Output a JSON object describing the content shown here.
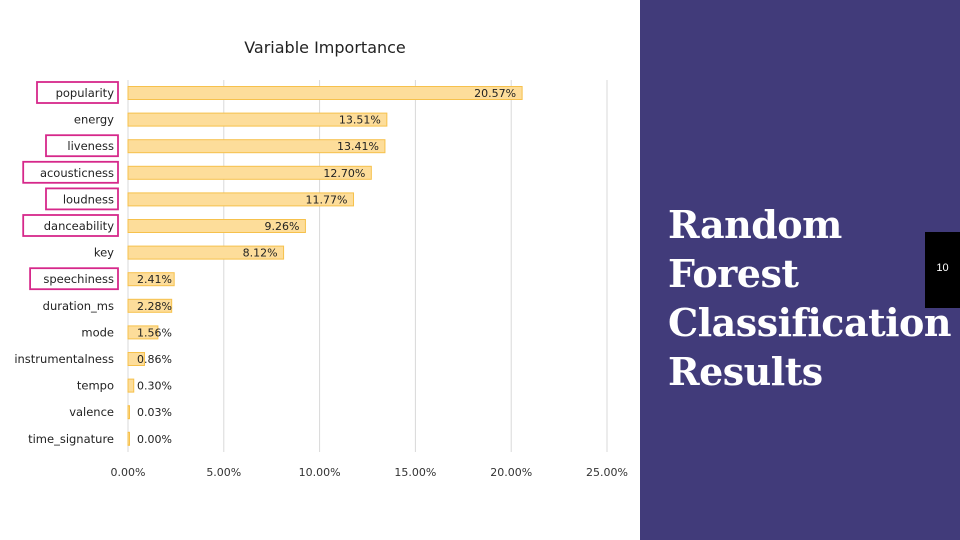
{
  "slide": {
    "title": "Random Forest Classification Results",
    "page_number": "10",
    "panel_color": "#413b7a"
  },
  "chart_data": {
    "type": "bar",
    "orientation": "horizontal",
    "title": "Variable Importance",
    "xlabel": "",
    "ylabel": "",
    "xlim": [
      0,
      25
    ],
    "x_ticks": [
      "0.00%",
      "5.00%",
      "10.00%",
      "15.00%",
      "20.00%",
      "25.00%"
    ],
    "grid": true,
    "bar_color": "#fddd9a",
    "bar_edge_color": "#f6c14c",
    "highlight_color": "#d6288a",
    "categories": [
      "popularity",
      "energy",
      "liveness",
      "acousticness",
      "loudness",
      "danceability",
      "key",
      "speechiness",
      "duration_ms",
      "mode",
      "instrumentalness",
      "tempo",
      "valence",
      "time_signature"
    ],
    "values": [
      20.57,
      13.51,
      13.41,
      12.7,
      11.77,
      9.26,
      8.12,
      2.41,
      2.28,
      1.56,
      0.86,
      0.3,
      0.03,
      0.0
    ],
    "data_labels": [
      "20.57%",
      "13.51%",
      "13.41%",
      "12.70%",
      "11.77%",
      "9.26%",
      "8.12%",
      "2.41%",
      "2.28%",
      "1.56%",
      "0.86%",
      "0.30%",
      "0.03%",
      "0.00%"
    ],
    "highlighted": [
      "popularity",
      "liveness",
      "acousticness",
      "loudness",
      "danceability",
      "speechiness"
    ]
  }
}
